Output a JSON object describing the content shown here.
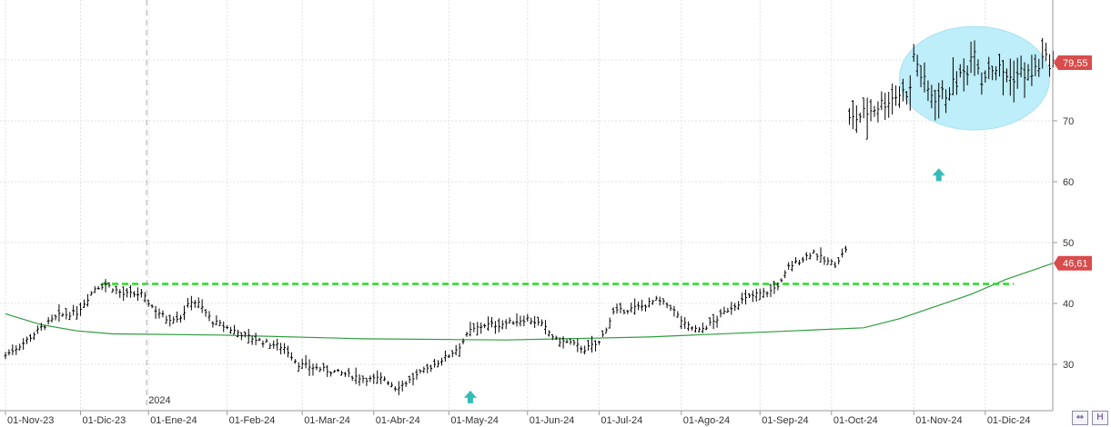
{
  "chart_data": {
    "type": "bar",
    "subtype": "ohlc",
    "title": "",
    "xlabel": "",
    "ylabel": "",
    "ylim": [
      22,
      90
    ],
    "y_ticks": [
      30,
      40,
      50,
      60,
      70
    ],
    "x_ticks": [
      {
        "label": "01-Nov-23",
        "i": 0
      },
      {
        "label": "01-Dic-23",
        "i": 21
      },
      {
        "label": "01-Ene-24",
        "i": 40
      },
      {
        "label": "01-Feb-24",
        "i": 62
      },
      {
        "label": "01-Mar-24",
        "i": 83
      },
      {
        "label": "01-Abr-24",
        "i": 103
      },
      {
        "label": "01-May-24",
        "i": 124
      },
      {
        "label": "01-Jun-24",
        "i": 146
      },
      {
        "label": "01-Jul-24",
        "i": 166
      },
      {
        "label": "01-Ago-24",
        "i": 189
      },
      {
        "label": "01-Sep-24",
        "i": 211
      },
      {
        "label": "01-Oct-24",
        "i": 231
      },
      {
        "label": "01-Nov-24",
        "i": 254
      },
      {
        "label": "01-Dic-24",
        "i": 274
      }
    ],
    "year_marker": {
      "label": "2024",
      "i": 40
    },
    "grid": true,
    "price_anchors": [
      [
        0,
        31.5
      ],
      [
        5,
        33.5
      ],
      [
        10,
        36
      ],
      [
        15,
        38
      ],
      [
        20,
        38.5
      ],
      [
        25,
        42.5
      ],
      [
        28,
        43.2
      ],
      [
        33,
        41.5
      ],
      [
        38,
        41.5
      ],
      [
        41,
        39.5
      ],
      [
        45,
        37.5
      ],
      [
        49,
        37.8
      ],
      [
        52,
        40.5
      ],
      [
        54,
        40
      ],
      [
        58,
        37
      ],
      [
        62,
        36
      ],
      [
        68,
        34.5
      ],
      [
        73,
        33.5
      ],
      [
        78,
        32.8
      ],
      [
        82,
        30
      ],
      [
        86,
        29.5
      ],
      [
        90,
        29
      ],
      [
        94,
        28.5
      ],
      [
        98,
        28
      ],
      [
        102,
        27.5
      ],
      [
        106,
        27.7
      ],
      [
        109,
        26.2
      ],
      [
        112,
        27
      ],
      [
        116,
        28.5
      ],
      [
        120,
        30
      ],
      [
        124,
        31.5
      ],
      [
        127,
        33
      ],
      [
        130,
        35.5
      ],
      [
        134,
        36.5
      ],
      [
        138,
        36.5
      ],
      [
        142,
        37
      ],
      [
        146,
        37.5
      ],
      [
        150,
        36.5
      ],
      [
        154,
        34
      ],
      [
        158,
        33.5
      ],
      [
        162,
        32.5
      ],
      [
        166,
        33.5
      ],
      [
        170,
        38.5
      ],
      [
        174,
        39
      ],
      [
        178,
        39.5
      ],
      [
        182,
        40.5
      ],
      [
        186,
        39.5
      ],
      [
        190,
        36.5
      ],
      [
        194,
        35.5
      ],
      [
        198,
        37
      ],
      [
        202,
        39
      ],
      [
        206,
        40.5
      ],
      [
        210,
        41.5
      ],
      [
        214,
        42
      ],
      [
        217,
        43.5
      ],
      [
        219,
        46
      ],
      [
        222,
        47
      ],
      [
        226,
        48.5
      ],
      [
        229,
        47
      ],
      [
        232,
        46.5
      ],
      [
        234,
        48
      ],
      [
        235,
        49
      ],
      [
        236,
        70
      ],
      [
        238,
        70.5
      ],
      [
        241,
        71.5
      ],
      [
        244,
        72.5
      ],
      [
        247,
        73.5
      ],
      [
        250,
        74.5
      ],
      [
        253,
        75
      ],
      [
        254,
        81
      ],
      [
        256,
        77.5
      ],
      [
        258,
        75
      ],
      [
        260,
        74
      ],
      [
        263,
        74.5
      ],
      [
        266,
        76.5
      ],
      [
        269,
        78.5
      ],
      [
        271,
        82.5
      ],
      [
        273,
        76.5
      ],
      [
        275,
        79
      ],
      [
        278,
        78.5
      ],
      [
        281,
        77
      ],
      [
        284,
        78
      ],
      [
        287,
        77.5
      ],
      [
        290,
        80
      ],
      [
        293,
        79.55
      ]
    ],
    "series": [
      {
        "name": "",
        "type": "ohlc",
        "color": "#000000"
      },
      {
        "name": "",
        "type": "line",
        "color": "#2e9c3e",
        "points": [
          [
            0,
            38.3
          ],
          [
            10,
            36.5
          ],
          [
            20,
            35.5
          ],
          [
            30,
            35
          ],
          [
            60,
            34.8
          ],
          [
            100,
            34.2
          ],
          [
            140,
            34
          ],
          [
            180,
            34.5
          ],
          [
            220,
            35.5
          ],
          [
            240,
            36
          ],
          [
            250,
            37.5
          ],
          [
            260,
            39.5
          ],
          [
            270,
            41.5
          ],
          [
            280,
            44
          ],
          [
            293,
            46.61
          ]
        ]
      }
    ],
    "annotations": {
      "horizontal_line": {
        "y": 43.2,
        "from_i": 27,
        "to_i": 282,
        "color": "#22dd22",
        "style": "dashed"
      },
      "ellipse": {
        "cx_i": 271,
        "cy": 77,
        "rx_i": 21,
        "ry": 8.5,
        "color": "#bdeefa"
      },
      "up_arrows": [
        {
          "i": 130,
          "y": 24.5,
          "color": "#33bbbb"
        },
        {
          "i": 261,
          "y": 61,
          "color": "#33bbbb"
        }
      ]
    },
    "price_labels": [
      {
        "text": "79,55",
        "value": 79.55,
        "bg": "#d94c4c"
      },
      {
        "text": "46,61",
        "value": 46.61,
        "bg": "#d94c4c"
      }
    ],
    "n_bars": 294,
    "legend": "none"
  },
  "controls": {
    "left_button_label": "⇔",
    "right_button_label": "H"
  }
}
